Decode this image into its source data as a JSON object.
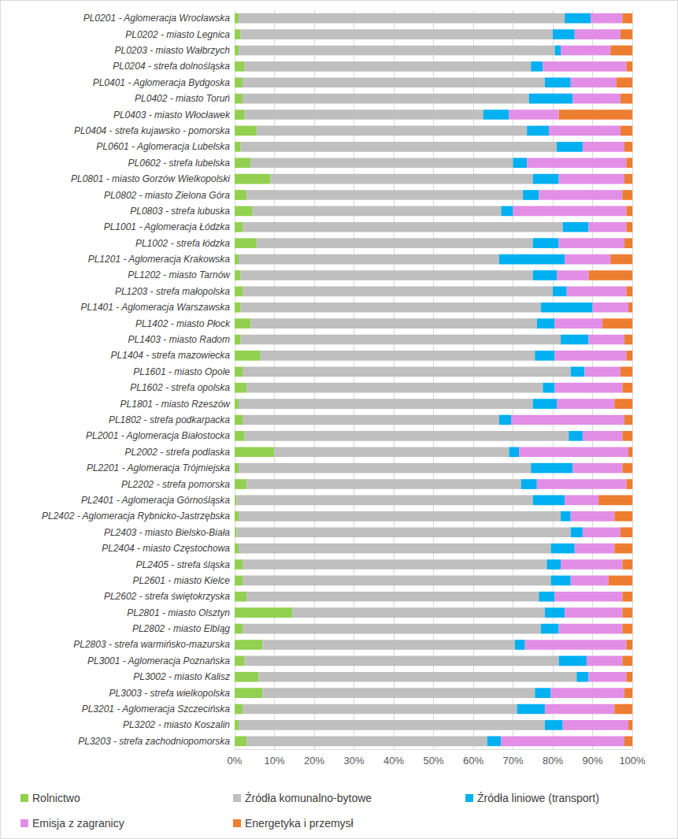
{
  "chart_data": {
    "type": "bar",
    "orientation": "horizontal",
    "stacked": true,
    "grid": true,
    "legend": "bottom",
    "xlim": [
      0,
      100
    ],
    "xticks": [
      {
        "value": 0,
        "label": "0%"
      },
      {
        "value": 10,
        "label": "10%"
      },
      {
        "value": 20,
        "label": "20%"
      },
      {
        "value": 30,
        "label": "30%"
      },
      {
        "value": 40,
        "label": "40%"
      },
      {
        "value": 50,
        "label": "50%"
      },
      {
        "value": 60,
        "label": "60%"
      },
      {
        "value": 70,
        "label": "70%"
      },
      {
        "value": 80,
        "label": "80%"
      },
      {
        "value": 90,
        "label": "90%"
      },
      {
        "value": 100,
        "label": "100%"
      }
    ],
    "categories": [
      "PL0201 - Aglomeracja Wrocławska",
      "PL0202 - miasto Legnica",
      "PL0203 - miasto Wałbrzych",
      "PL0204 - strefa dolnośląska",
      "PL0401 - Aglomeracja Bydgoska",
      "PL0402 - miasto Toruń",
      "PL0403 - miasto Włocławek",
      "PL0404 - strefa kujawsko - pomorska",
      "PL0601 - Aglomeracja Lubelska",
      "PL0602 - strefa lubelska",
      "PL0801 - miasto Gorzów Wielkopolski",
      "PL0802 - miasto Zielona Góra",
      "PL0803 - strefa lubuska",
      "PL1001 - Aglomeracja Łódzka",
      "PL1002 - strefa łódzka",
      "PL1201 - Aglomeracja Krakowska",
      "PL1202 - miasto Tarnów",
      "PL1203 - strefa małopolska",
      "PL1401 - Aglomeracja Warszawska",
      "PL1402 - miasto Płock",
      "PL1403 - miasto Radom",
      "PL1404 - strefa mazowiecka",
      "PL1601 - miasto Opole",
      "PL1602 - strefa opolska",
      "PL1801 - miasto Rzeszów",
      "PL1802 - strefa podkarpacka",
      "PL2001 - Aglomeracja Białostocka",
      "PL2002 - strefa podlaska",
      "PL2201 - Aglomeracja Trójmiejska",
      "PL2202 - strefa pomorska",
      "PL2401 - Aglomeracja Górnośląska",
      "PL2402 - Aglomeracja Rybnicko-Jastrzębska",
      "PL2403 - miasto Bielsko-Biała",
      "PL2404 - miasto Częstochowa",
      "PL2405 - strefa śląska",
      "PL2601 - miasto Kielce",
      "PL2602 - strefa świętokrzyska",
      "PL2801 - miasto Olsztyn",
      "PL2802 - miasto Elbląg",
      "PL2803 - strefa warmińsko-mazurska",
      "PL3001 - Aglomeracja Poznańska",
      "PL3002 - miasto Kalisz",
      "PL3003 - strefa wielkopolska",
      "PL3201 - Aglomeracja Szczecińska",
      "PL3202 - miasto Koszalin",
      "PL3203 - strefa zachodniopomorska"
    ],
    "series": [
      {
        "name": "Rolnictwo",
        "color": "#92d050",
        "values": [
          1,
          1.5,
          1,
          2.5,
          2,
          2,
          2.5,
          5.5,
          1.5,
          4,
          9,
          3,
          4.5,
          2,
          5.5,
          1,
          1.5,
          2,
          1.5,
          4,
          1.5,
          6.5,
          2,
          3,
          1,
          2,
          2.5,
          10,
          1,
          3,
          0.5,
          1,
          0.5,
          1,
          2,
          2,
          3,
          14.5,
          2,
          7,
          2.5,
          6,
          7,
          2,
          1,
          3
        ]
      },
      {
        "name": "Źródła komunalno-bytowe",
        "color": "#bfbfbf",
        "values": [
          82,
          78.5,
          79.5,
          72,
          76,
          72,
          60,
          68,
          79.5,
          66,
          66,
          69.5,
          62.5,
          80.5,
          69.5,
          65.5,
          73.5,
          78,
          75.5,
          72,
          80.5,
          69,
          82.5,
          74.5,
          74,
          64.5,
          81.5,
          59,
          73.5,
          69,
          74.5,
          81,
          84,
          78.5,
          76.5,
          77.5,
          73.5,
          63.5,
          75,
          63.5,
          79,
          80,
          68.5,
          69,
          77,
          60.5
        ]
      },
      {
        "name": "Źródła liniowe (transport)",
        "color": "#00b0f0",
        "values": [
          6.5,
          5.5,
          1.5,
          3,
          6.5,
          11,
          6.5,
          5.5,
          6.5,
          3.5,
          6.5,
          4,
          3,
          6.5,
          6.5,
          16.5,
          6,
          3.5,
          13,
          4.5,
          7,
          5,
          3.5,
          3,
          6,
          3,
          3.5,
          2.5,
          10.5,
          4,
          8,
          2.5,
          3,
          6,
          3.5,
          5,
          4,
          5,
          4.5,
          2.5,
          7,
          3,
          4,
          7,
          4.5,
          3.5
        ]
      },
      {
        "name": "Emisja z zagranicy",
        "color": "#e28ee6",
        "values": [
          8,
          11.5,
          12.5,
          21,
          11.5,
          12,
          12.5,
          18,
          10.5,
          25,
          16.5,
          21,
          28.5,
          9.5,
          16.5,
          11.5,
          8,
          15,
          9,
          12,
          9,
          18,
          9,
          17,
          14.5,
          28.5,
          10,
          27.5,
          12.5,
          22.5,
          8.5,
          11,
          9.5,
          10,
          15.5,
          9.5,
          17,
          14.5,
          16,
          25.5,
          9,
          9.5,
          18.5,
          17.5,
          16.5,
          31
        ]
      },
      {
        "name": "Energetyka i przemysł",
        "color": "#ed7d31",
        "values": [
          2.5,
          3,
          5.5,
          1.5,
          4,
          3,
          18.5,
          3,
          2,
          1.5,
          2,
          2.5,
          1.5,
          1.5,
          2,
          5.5,
          11,
          1.5,
          1,
          7.5,
          2,
          1.5,
          3,
          2.5,
          4.5,
          2,
          2.5,
          1,
          2.5,
          1.5,
          8.5,
          4.5,
          3,
          4.5,
          2.5,
          6,
          2.5,
          2.5,
          2.5,
          1.5,
          2.5,
          1.5,
          2,
          4.5,
          1,
          2
        ]
      }
    ]
  }
}
